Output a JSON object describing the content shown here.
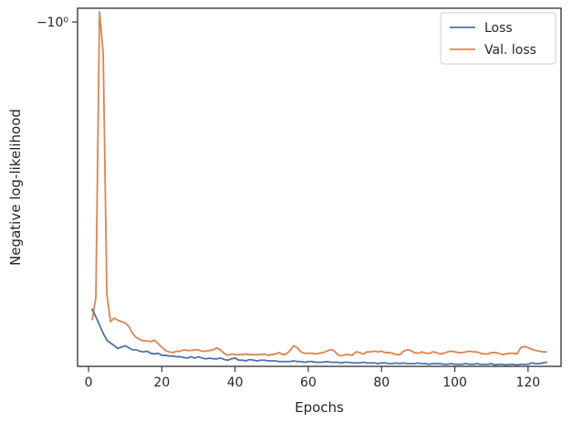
{
  "chart_data": {
    "type": "line",
    "xlabel": "Epochs",
    "ylabel": "Negative log-likelihood",
    "xlim": [
      -3,
      129
    ],
    "xticks": [
      0,
      20,
      40,
      60,
      80,
      100,
      120
    ],
    "ylim": [
      -1.5,
      -0.98
    ],
    "yscale": "symlog",
    "yticks": [
      {
        "value": -1.0,
        "label": "−10⁰"
      }
    ],
    "grid": false,
    "legend_position": "top-right",
    "series": [
      {
        "name": "Loss",
        "color": "#4c72b0",
        "x": [
          1,
          2,
          3,
          4,
          5,
          6,
          7,
          8,
          9,
          10,
          11,
          12,
          13,
          14,
          15,
          16,
          17,
          18,
          19,
          20,
          21,
          22,
          23,
          24,
          25,
          26,
          27,
          28,
          29,
          30,
          31,
          32,
          33,
          34,
          35,
          36,
          37,
          38,
          39,
          40,
          41,
          42,
          43,
          44,
          45,
          46,
          47,
          48,
          49,
          50,
          51,
          52,
          53,
          54,
          55,
          56,
          57,
          58,
          59,
          60,
          61,
          62,
          63,
          64,
          65,
          66,
          67,
          68,
          69,
          70,
          71,
          72,
          73,
          74,
          75,
          76,
          77,
          78,
          79,
          80,
          81,
          82,
          83,
          84,
          85,
          86,
          87,
          88,
          89,
          90,
          91,
          92,
          93,
          94,
          95,
          96,
          97,
          98,
          99,
          100,
          101,
          102,
          103,
          104,
          105,
          106,
          107,
          108,
          109,
          110,
          111,
          112,
          113,
          114,
          115,
          116,
          117,
          118,
          119,
          120,
          121,
          122,
          123,
          124,
          125
        ],
        "y": [
          -1.417,
          -1.428,
          -1.44,
          -1.452,
          -1.462,
          -1.466,
          -1.47,
          -1.474,
          -1.472,
          -1.47,
          -1.473,
          -1.476,
          -1.476,
          -1.478,
          -1.479,
          -1.478,
          -1.481,
          -1.482,
          -1.481,
          -1.484,
          -1.484,
          -1.485,
          -1.485,
          -1.486,
          -1.486,
          -1.487,
          -1.488,
          -1.486,
          -1.488,
          -1.486,
          -1.488,
          -1.489,
          -1.488,
          -1.489,
          -1.489,
          -1.488,
          -1.49,
          -1.491,
          -1.489,
          -1.488,
          -1.491,
          -1.491,
          -1.492,
          -1.49,
          -1.491,
          -1.492,
          -1.491,
          -1.491,
          -1.492,
          -1.492,
          -1.492,
          -1.493,
          -1.493,
          -1.493,
          -1.493,
          -1.492,
          -1.493,
          -1.493,
          -1.494,
          -1.493,
          -1.493,
          -1.494,
          -1.494,
          -1.494,
          -1.493,
          -1.494,
          -1.494,
          -1.494,
          -1.495,
          -1.494,
          -1.494,
          -1.495,
          -1.495,
          -1.495,
          -1.494,
          -1.495,
          -1.495,
          -1.495,
          -1.496,
          -1.495,
          -1.495,
          -1.496,
          -1.496,
          -1.495,
          -1.496,
          -1.495,
          -1.496,
          -1.496,
          -1.496,
          -1.495,
          -1.496,
          -1.496,
          -1.497,
          -1.496,
          -1.496,
          -1.496,
          -1.497,
          -1.497,
          -1.496,
          -1.497,
          -1.497,
          -1.497,
          -1.496,
          -1.497,
          -1.497,
          -1.496,
          -1.497,
          -1.497,
          -1.497,
          -1.496,
          -1.498,
          -1.497,
          -1.497,
          -1.498,
          -1.497,
          -1.497,
          -1.498,
          -1.497,
          -1.497,
          -1.497,
          -1.495,
          -1.496,
          -1.496,
          -1.495,
          -1.494
        ]
      },
      {
        "name": "Val. loss",
        "color": "#dd8452",
        "x": [
          1,
          2,
          3,
          4,
          5,
          6,
          7,
          8,
          9,
          10,
          11,
          12,
          13,
          14,
          15,
          16,
          17,
          18,
          19,
          20,
          21,
          22,
          23,
          24,
          25,
          26,
          27,
          28,
          29,
          30,
          31,
          32,
          33,
          34,
          35,
          36,
          37,
          38,
          39,
          40,
          41,
          42,
          43,
          44,
          45,
          46,
          47,
          48,
          49,
          50,
          51,
          52,
          53,
          54,
          55,
          56,
          57,
          58,
          59,
          60,
          61,
          62,
          63,
          64,
          65,
          66,
          67,
          68,
          69,
          70,
          71,
          72,
          73,
          74,
          75,
          76,
          77,
          78,
          79,
          80,
          81,
          82,
          83,
          84,
          85,
          86,
          87,
          88,
          89,
          90,
          91,
          92,
          93,
          94,
          95,
          96,
          97,
          98,
          99,
          100,
          101,
          102,
          103,
          104,
          105,
          106,
          107,
          108,
          109,
          110,
          111,
          112,
          113,
          114,
          115,
          116,
          117,
          118,
          119,
          120,
          121,
          122,
          123,
          124,
          125
        ],
        "y": [
          -1.432,
          -1.4,
          -0.985,
          -1.045,
          -1.395,
          -1.435,
          -1.43,
          -1.433,
          -1.435,
          -1.437,
          -1.442,
          -1.452,
          -1.458,
          -1.461,
          -1.463,
          -1.463,
          -1.464,
          -1.462,
          -1.467,
          -1.472,
          -1.477,
          -1.479,
          -1.48,
          -1.478,
          -1.478,
          -1.476,
          -1.477,
          -1.477,
          -1.476,
          -1.476,
          -1.478,
          -1.478,
          -1.477,
          -1.476,
          -1.473,
          -1.476,
          -1.481,
          -1.484,
          -1.482,
          -1.483,
          -1.483,
          -1.483,
          -1.482,
          -1.483,
          -1.483,
          -1.483,
          -1.483,
          -1.482,
          -1.484,
          -1.483,
          -1.482,
          -1.48,
          -1.483,
          -1.482,
          -1.477,
          -1.47,
          -1.473,
          -1.479,
          -1.481,
          -1.481,
          -1.481,
          -1.482,
          -1.481,
          -1.48,
          -1.478,
          -1.476,
          -1.477,
          -1.483,
          -1.485,
          -1.483,
          -1.483,
          -1.484,
          -1.479,
          -1.48,
          -1.482,
          -1.479,
          -1.479,
          -1.478,
          -1.479,
          -1.478,
          -1.48,
          -1.48,
          -1.481,
          -1.483,
          -1.483,
          -1.478,
          -1.476,
          -1.477,
          -1.48,
          -1.481,
          -1.479,
          -1.481,
          -1.481,
          -1.479,
          -1.48,
          -1.482,
          -1.481,
          -1.479,
          -1.478,
          -1.479,
          -1.48,
          -1.48,
          -1.479,
          -1.478,
          -1.479,
          -1.479,
          -1.481,
          -1.482,
          -1.482,
          -1.48,
          -1.48,
          -1.481,
          -1.483,
          -1.482,
          -1.481,
          -1.481,
          -1.482,
          -1.473,
          -1.471,
          -1.473,
          -1.475,
          -1.477,
          -1.478,
          -1.479,
          -1.479
        ]
      }
    ]
  }
}
